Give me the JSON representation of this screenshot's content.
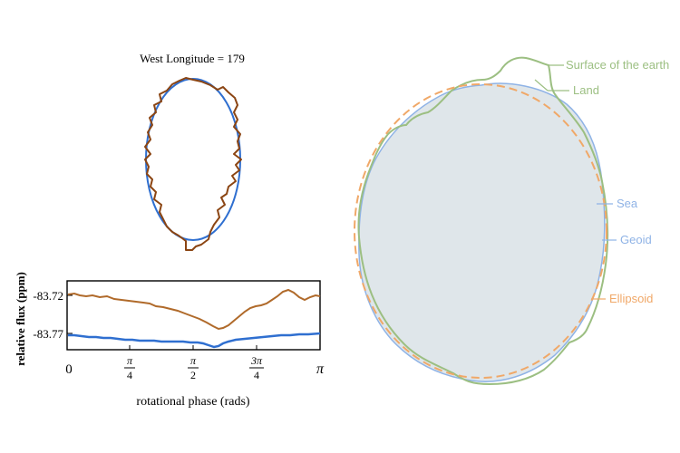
{
  "left_panel": {
    "title": "West Longitude = 179",
    "flux_plot": {
      "ylabel": "relative flux (ppm)",
      "xlabel": "rotational phase (rads)",
      "y_ticks": [
        "-83.72",
        "-83.77"
      ],
      "x_ticks": [
        {
          "num": "0",
          "den": ""
        },
        {
          "num": "π",
          "den": "4"
        },
        {
          "num": "π",
          "den": "2"
        },
        {
          "num": "3π",
          "den": "4"
        },
        {
          "num": "π",
          "den": ""
        }
      ],
      "series_colors": {
        "brown": "#b06a2a",
        "blue": "#2f6fd0"
      }
    },
    "shape_colors": {
      "circle": "#2f6fd0",
      "outline": "#8b4513"
    }
  },
  "right_panel": {
    "labels": {
      "surface": "Surface of the earth",
      "land": "Land",
      "sea": "Sea",
      "geoid": "Geoid",
      "ellipsoid": "Ellipsoid"
    },
    "colors": {
      "surface": "#9cbf82",
      "geoid": "#8fb3e6",
      "fill": "#dfe6ea",
      "ellipsoid": "#f0a868"
    }
  }
}
